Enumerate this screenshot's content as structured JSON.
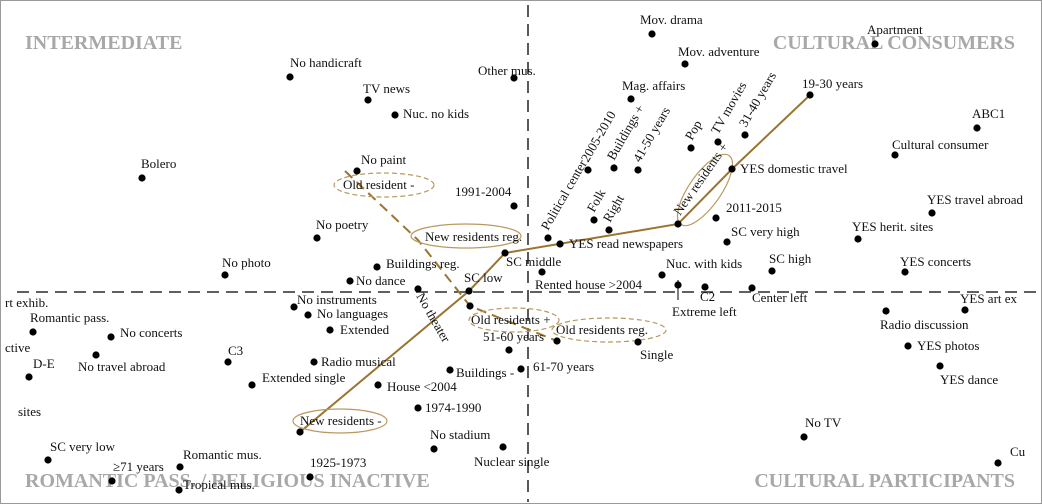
{
  "quadrants": [
    "INTERMEDIATE",
    "CULTURAL CONSUMERS",
    "ROMANTIC PASS. / RELIGIOUS INACTIVE",
    "CULTURAL PARTICIPANTS"
  ],
  "points": [
    {
      "label": "Mov. drama"
    },
    {
      "label": "Apartment"
    },
    {
      "label": "Mov. adventure"
    },
    {
      "label": "No handicraft"
    },
    {
      "label": "Other mus."
    },
    {
      "label": "19-30 years"
    },
    {
      "label": "Mag. affairs"
    },
    {
      "label": "TV news"
    },
    {
      "label": "Nuc. no kids"
    },
    {
      "label": "ABC1"
    },
    {
      "label": "Cultural consumer"
    },
    {
      "label": "2005-2010"
    },
    {
      "label": "Buildings +"
    },
    {
      "label": "41-50 years"
    },
    {
      "label": "Pop"
    },
    {
      "label": "TV movies"
    },
    {
      "label": "31-40 years"
    },
    {
      "label": "YES domestic travel"
    },
    {
      "label": "No paint"
    },
    {
      "label": "Old resident -"
    },
    {
      "label": "Bolero"
    },
    {
      "label": "1991-2004"
    },
    {
      "label": "Political center"
    },
    {
      "label": "Folk"
    },
    {
      "label": "Right"
    },
    {
      "label": "New residents +"
    },
    {
      "label": "2011-2015"
    },
    {
      "label": "YES travel abroad"
    },
    {
      "label": "No poetry"
    },
    {
      "label": "YES herit. sites"
    },
    {
      "label": "New residents reg."
    },
    {
      "label": "SC very high"
    },
    {
      "label": "YES read newspapers"
    },
    {
      "label": "SC middle"
    },
    {
      "label": "No photo"
    },
    {
      "label": "Buildings reg."
    },
    {
      "label": "No dance"
    },
    {
      "label": "SC high"
    },
    {
      "label": "YES concerts"
    },
    {
      "label": "Nuc. with kids"
    },
    {
      "label": "Rented house >2004"
    },
    {
      "label": "SC low"
    },
    {
      "label": "C2"
    },
    {
      "label": "Center left"
    },
    {
      "label": "Extreme left"
    },
    {
      "label": "No theater"
    },
    {
      "label": "rt exhib."
    },
    {
      "label": "No instruments"
    },
    {
      "label": "No languages"
    },
    {
      "label": "YES art ex"
    },
    {
      "label": "Radio discussion"
    },
    {
      "label": "Romantic pass."
    },
    {
      "label": "No concerts"
    },
    {
      "label": "Extended"
    },
    {
      "label": "Old residents +"
    },
    {
      "label": "Old residents reg."
    },
    {
      "label": "51-60 years"
    },
    {
      "label": "Single"
    },
    {
      "label": "YES photos"
    },
    {
      "label": "ctive"
    },
    {
      "label": "D-E"
    },
    {
      "label": "No travel abroad"
    },
    {
      "label": "C3"
    },
    {
      "label": "Radio musical"
    },
    {
      "label": "61-70 years"
    },
    {
      "label": "Buildings -"
    },
    {
      "label": "YES dance"
    },
    {
      "label": "Extended single"
    },
    {
      "label": "House <2004"
    },
    {
      "label": "1974-1990"
    },
    {
      "label": "sites"
    },
    {
      "label": "New residents -"
    },
    {
      "label": "No TV"
    },
    {
      "label": "No stadium"
    },
    {
      "label": "Nuclear single"
    },
    {
      "label": "SC very low"
    },
    {
      "label": "Cu"
    },
    {
      "label": "Romantic mus."
    },
    {
      "label": "≥71 years"
    },
    {
      "label": "1925-1973"
    },
    {
      "label": "Tropical mus."
    }
  ]
}
